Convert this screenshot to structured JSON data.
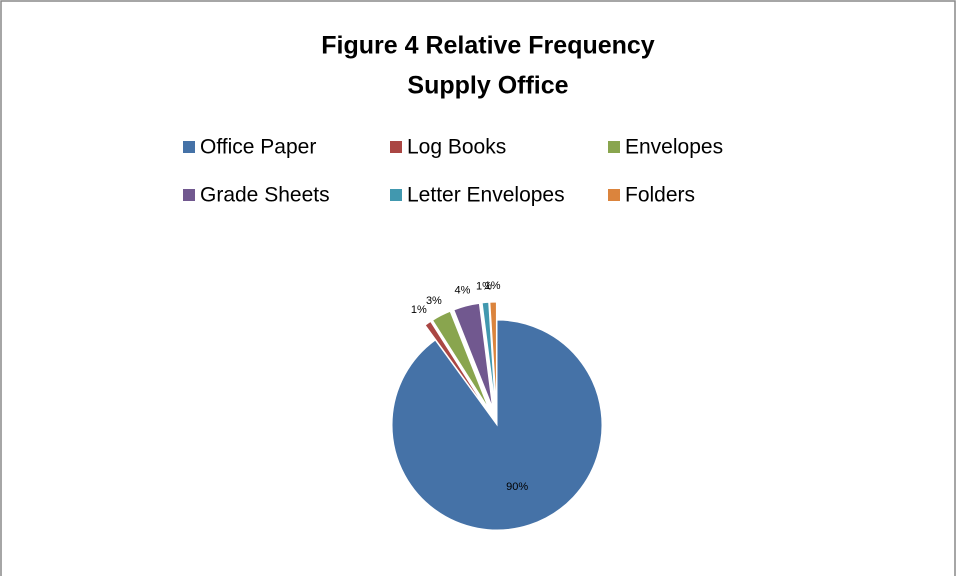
{
  "chart_data": {
    "type": "pie",
    "title": "Figure 4 Relative Frequency",
    "subtitle": "Supply Office",
    "categories": [
      "Office Paper",
      "Log Books",
      "Envelopes",
      "Grade Sheets",
      "Letter Envelopes",
      "Folders"
    ],
    "values": [
      90,
      1,
      3,
      4,
      1,
      1
    ],
    "value_labels": [
      "90%",
      "1%",
      "3%",
      "4%",
      "1%",
      "1%"
    ],
    "colors": [
      "#4572a7",
      "#aa4643",
      "#89a54e",
      "#71588f",
      "#4198af",
      "#db843d"
    ],
    "legend": "top"
  }
}
